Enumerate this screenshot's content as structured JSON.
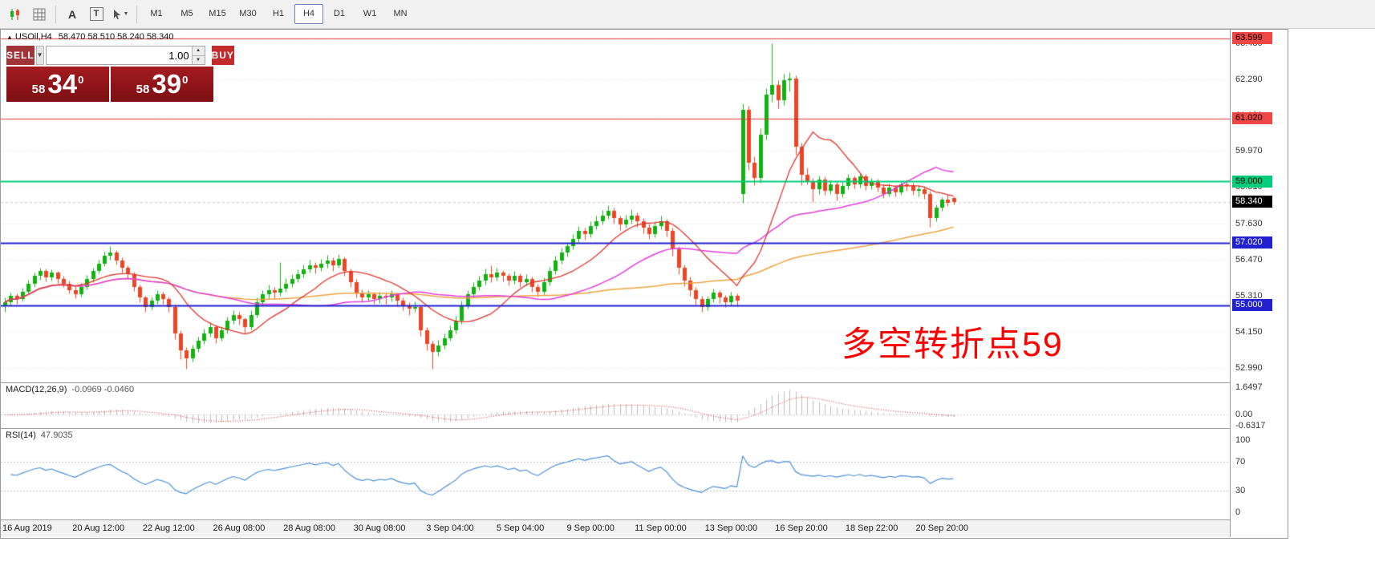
{
  "toolbar": {
    "letter_a": "A",
    "letter_t": "T",
    "timeframes": [
      "M1",
      "M5",
      "M15",
      "M30",
      "H1",
      "H4",
      "D1",
      "W1",
      "MN"
    ],
    "active_timeframe": "H4"
  },
  "chart_header": {
    "marker": "▲",
    "symbol_tf": "USOil,H4",
    "ohlc": "58.470 58.510 58.240 58.340"
  },
  "trade_widget": {
    "sell_label": "SELL",
    "buy_label": "BUY",
    "volume": "1.00",
    "sell_price": {
      "prefix": "58",
      "big": "34",
      "sup": "0"
    },
    "buy_price": {
      "prefix": "58",
      "big": "39",
      "sup": "0"
    }
  },
  "annotation": {
    "text": "多空转折点59",
    "color": "#ff0000"
  },
  "macd_panel": {
    "label": "MACD(12,26,9)",
    "values": "-0.0969 -0.0460"
  },
  "rsi_panel": {
    "label": "RSI(14)",
    "values": "47.9035"
  },
  "current_price_tag": {
    "label": "58.340",
    "bg": "#000000",
    "fg": "#ffffff"
  },
  "chart_data": {
    "type": "candlestick",
    "symbol": "USOil",
    "timeframe": "H4",
    "ylim": [
      52.52,
      63.88
    ],
    "price_ticks": [
      "63.430",
      "62.290",
      "61.130",
      "59.970",
      "58.810",
      "57.630",
      "56.470",
      "55.310",
      "54.150",
      "52.990"
    ],
    "hlines": [
      {
        "price": 63.599,
        "label": "63.599",
        "color": "#e03232",
        "width": 1,
        "tag_bg": "#ef4646",
        "tag_fg": "#000000"
      },
      {
        "price": 61.02,
        "label": "61.020",
        "color": "#e03232",
        "width": 1,
        "tag_bg": "#ef4646",
        "tag_fg": "#000000"
      },
      {
        "price": 59.0,
        "label": "59.000",
        "color": "#00ce7c",
        "width": 2,
        "tag_bg": "#00ce7c",
        "tag_fg": "#000000"
      },
      {
        "price": 57.02,
        "label": "57.020",
        "color": "#2121cf",
        "width": 2,
        "tag_bg": "#2121cf",
        "tag_fg": "#ffffff"
      },
      {
        "price": 55.0,
        "label": "55.000",
        "color": "#2121cf",
        "width": 2,
        "tag_bg": "#2121cf",
        "tag_fg": "#ffffff"
      }
    ],
    "bid_price": 58.34,
    "ma_periods": {
      "fast": 13,
      "mid": 34,
      "slow": 89
    },
    "macd_params": [
      12,
      26,
      9
    ],
    "macd_ylim": [
      -0.8,
      1.9
    ],
    "macd_scale": [
      {
        "text": "1.6497",
        "v": 1.6497
      },
      {
        "text": "0.00",
        "v": 0
      },
      {
        "text": "-0.6317",
        "v": -0.6317
      }
    ],
    "rsi_period": 14,
    "rsi_scale": [
      {
        "text": "100",
        "v": 100
      },
      {
        "text": "70",
        "v": 70
      },
      {
        "text": "30",
        "v": 30
      },
      {
        "text": "0",
        "v": 0
      }
    ],
    "rsi_levels": [
      70,
      30
    ],
    "colors": {
      "up": "#12b212",
      "down": "#ec4626",
      "ma_fast": "#e0352b",
      "ma_mid": "#e23ddb",
      "ma_slow": "#eca43e",
      "macd_hist": "#bdbdbd",
      "macd_signal": "#de2020",
      "rsi": "#4a90d9",
      "grid": "#e6e6e6",
      "level_dash": "#c0c0c0"
    },
    "time_labels": [
      {
        "text": "16 Aug 2019",
        "i": 0
      },
      {
        "text": "20 Aug 12:00",
        "i": 16
      },
      {
        "text": "22 Aug 12:00",
        "i": 28
      },
      {
        "text": "26 Aug 08:00",
        "i": 40
      },
      {
        "text": "28 Aug 08:00",
        "i": 52
      },
      {
        "text": "30 Aug 08:00",
        "i": 64
      },
      {
        "text": "3 Sep 04:00",
        "i": 76
      },
      {
        "text": "5 Sep 04:00",
        "i": 88
      },
      {
        "text": "9 Sep 00:00",
        "i": 100
      },
      {
        "text": "11 Sep 00:00",
        "i": 112
      },
      {
        "text": "13 Sep 00:00",
        "i": 124
      },
      {
        "text": "16 Sep 20:00",
        "i": 136
      },
      {
        "text": "18 Sep 22:00",
        "i": 148
      },
      {
        "text": "20 Sep 20:00",
        "i": 160
      }
    ],
    "candles": [
      [
        55.0,
        55.25,
        54.8,
        55.1
      ],
      [
        55.1,
        55.42,
        55.0,
        55.3
      ],
      [
        55.3,
        55.38,
        55.05,
        55.2
      ],
      [
        55.2,
        55.56,
        55.12,
        55.45
      ],
      [
        55.45,
        55.82,
        55.38,
        55.7
      ],
      [
        55.7,
        56.06,
        55.6,
        55.95
      ],
      [
        55.95,
        56.22,
        55.82,
        56.1
      ],
      [
        56.1,
        56.18,
        55.78,
        55.9
      ],
      [
        55.9,
        56.16,
        55.8,
        56.05
      ],
      [
        56.05,
        56.12,
        55.72,
        55.85
      ],
      [
        55.85,
        55.95,
        55.58,
        55.7
      ],
      [
        55.7,
        55.8,
        55.38,
        55.5
      ],
      [
        55.5,
        55.62,
        55.22,
        55.35
      ],
      [
        55.35,
        55.72,
        55.28,
        55.6
      ],
      [
        55.6,
        55.97,
        55.52,
        55.85
      ],
      [
        55.85,
        56.22,
        55.76,
        56.1
      ],
      [
        56.1,
        56.48,
        56.02,
        56.35
      ],
      [
        56.35,
        56.73,
        56.26,
        56.6
      ],
      [
        56.6,
        56.9,
        56.48,
        56.7
      ],
      [
        56.7,
        56.78,
        56.32,
        56.45
      ],
      [
        56.45,
        56.55,
        56.06,
        56.2
      ],
      [
        56.2,
        56.3,
        55.86,
        56.0
      ],
      [
        56.0,
        56.08,
        55.46,
        55.6
      ],
      [
        55.6,
        55.68,
        55.1,
        55.25
      ],
      [
        55.25,
        55.32,
        54.78,
        54.95
      ],
      [
        54.95,
        55.28,
        54.86,
        55.15
      ],
      [
        55.15,
        55.48,
        55.06,
        55.35
      ],
      [
        55.35,
        55.44,
        55.04,
        55.2
      ],
      [
        55.2,
        55.29,
        54.78,
        54.95
      ],
      [
        54.95,
        55.02,
        53.92,
        54.1
      ],
      [
        54.1,
        54.2,
        53.28,
        53.55
      ],
      [
        53.55,
        53.66,
        52.97,
        53.3
      ],
      [
        53.3,
        53.74,
        53.18,
        53.6
      ],
      [
        53.6,
        53.99,
        53.5,
        53.85
      ],
      [
        53.85,
        54.24,
        53.76,
        54.1
      ],
      [
        54.1,
        54.45,
        54.0,
        54.3
      ],
      [
        54.3,
        54.38,
        53.78,
        53.95
      ],
      [
        53.95,
        54.34,
        53.86,
        54.2
      ],
      [
        54.2,
        54.64,
        54.1,
        54.5
      ],
      [
        54.5,
        54.85,
        54.4,
        54.7
      ],
      [
        54.7,
        54.78,
        54.38,
        54.55
      ],
      [
        54.55,
        54.62,
        54.12,
        54.3
      ],
      [
        54.3,
        54.84,
        54.22,
        54.7
      ],
      [
        54.7,
        55.25,
        54.6,
        55.1
      ],
      [
        55.1,
        55.5,
        55.0,
        55.35
      ],
      [
        55.35,
        55.66,
        55.24,
        55.5
      ],
      [
        55.5,
        55.58,
        55.2,
        55.4
      ],
      [
        55.4,
        56.4,
        55.3,
        55.55
      ],
      [
        55.55,
        55.88,
        55.45,
        55.7
      ],
      [
        55.7,
        56.0,
        55.6,
        55.85
      ],
      [
        55.85,
        56.15,
        55.74,
        56.0
      ],
      [
        56.0,
        56.32,
        55.9,
        56.15
      ],
      [
        56.15,
        56.46,
        56.05,
        56.3
      ],
      [
        56.3,
        56.4,
        56.02,
        56.2
      ],
      [
        56.2,
        56.5,
        56.1,
        56.35
      ],
      [
        56.35,
        56.62,
        56.22,
        56.45
      ],
      [
        56.45,
        56.55,
        56.12,
        56.3
      ],
      [
        56.3,
        56.66,
        56.2,
        56.5
      ],
      [
        56.5,
        56.58,
        55.96,
        56.1
      ],
      [
        56.1,
        56.18,
        55.6,
        55.75
      ],
      [
        55.75,
        55.85,
        55.26,
        55.4
      ],
      [
        55.4,
        55.52,
        55.1,
        55.25
      ],
      [
        55.25,
        55.5,
        55.14,
        55.35
      ],
      [
        55.35,
        55.45,
        55.05,
        55.2
      ],
      [
        55.2,
        55.44,
        55.08,
        55.3
      ],
      [
        55.3,
        55.4,
        55.06,
        55.25
      ],
      [
        55.25,
        55.49,
        55.12,
        55.35
      ],
      [
        55.35,
        55.42,
        54.98,
        55.15
      ],
      [
        55.15,
        55.25,
        54.84,
        55.0
      ],
      [
        55.0,
        55.1,
        54.7,
        54.9
      ],
      [
        54.9,
        55.12,
        54.78,
        54.95
      ],
      [
        54.95,
        55.0,
        54.02,
        54.2
      ],
      [
        54.2,
        54.3,
        53.55,
        53.75
      ],
      [
        53.75,
        53.85,
        52.96,
        53.5
      ],
      [
        53.5,
        53.88,
        53.38,
        53.7
      ],
      [
        53.7,
        54.1,
        53.6,
        53.95
      ],
      [
        53.95,
        54.36,
        53.85,
        54.2
      ],
      [
        54.2,
        54.66,
        54.1,
        54.5
      ],
      [
        54.5,
        55.16,
        54.4,
        55.0
      ],
      [
        55.0,
        55.5,
        54.9,
        55.35
      ],
      [
        55.35,
        55.76,
        55.25,
        55.6
      ],
      [
        55.6,
        55.96,
        55.48,
        55.8
      ],
      [
        55.8,
        56.18,
        55.68,
        56.0
      ],
      [
        56.0,
        56.3,
        55.76,
        55.9
      ],
      [
        55.9,
        56.22,
        55.8,
        56.05
      ],
      [
        56.05,
        56.14,
        55.78,
        55.95
      ],
      [
        55.95,
        56.04,
        55.64,
        55.8
      ],
      [
        55.8,
        56.12,
        55.7,
        55.95
      ],
      [
        55.95,
        56.04,
        55.58,
        55.75
      ],
      [
        55.75,
        56.01,
        55.65,
        55.85
      ],
      [
        55.85,
        55.93,
        55.44,
        55.6
      ],
      [
        55.6,
        55.7,
        55.28,
        55.45
      ],
      [
        55.45,
        55.9,
        55.35,
        55.75
      ],
      [
        55.75,
        56.24,
        55.65,
        56.1
      ],
      [
        56.1,
        56.6,
        56.0,
        56.45
      ],
      [
        56.45,
        56.86,
        56.35,
        56.7
      ],
      [
        56.7,
        57.04,
        56.58,
        56.9
      ],
      [
        56.9,
        57.3,
        56.8,
        57.15
      ],
      [
        57.15,
        57.56,
        57.04,
        57.4
      ],
      [
        57.4,
        57.5,
        57.12,
        57.3
      ],
      [
        57.3,
        57.71,
        57.2,
        57.55
      ],
      [
        57.55,
        57.88,
        57.45,
        57.7
      ],
      [
        57.7,
        58.08,
        57.6,
        57.9
      ],
      [
        57.9,
        58.22,
        57.78,
        58.05
      ],
      [
        58.05,
        58.14,
        57.64,
        57.8
      ],
      [
        57.8,
        57.9,
        57.42,
        57.6
      ],
      [
        57.6,
        57.92,
        57.5,
        57.75
      ],
      [
        57.75,
        58.1,
        57.64,
        57.9
      ],
      [
        57.9,
        58.0,
        57.52,
        57.7
      ],
      [
        57.7,
        57.8,
        57.32,
        57.5
      ],
      [
        57.5,
        57.62,
        57.14,
        57.3
      ],
      [
        57.3,
        57.72,
        57.2,
        57.55
      ],
      [
        57.55,
        57.9,
        57.44,
        57.7
      ],
      [
        57.7,
        57.78,
        57.22,
        57.4
      ],
      [
        57.4,
        57.5,
        56.6,
        56.8
      ],
      [
        56.8,
        56.9,
        56.0,
        56.2
      ],
      [
        56.2,
        56.32,
        55.62,
        55.8
      ],
      [
        55.8,
        55.92,
        55.32,
        55.5
      ],
      [
        55.5,
        55.6,
        55.02,
        55.2
      ],
      [
        55.2,
        55.3,
        54.78,
        54.95
      ],
      [
        54.95,
        55.32,
        54.85,
        55.2
      ],
      [
        55.2,
        55.54,
        55.1,
        55.4
      ],
      [
        55.4,
        55.48,
        55.08,
        55.25
      ],
      [
        55.25,
        55.34,
        54.94,
        55.1
      ],
      [
        55.1,
        55.44,
        55.0,
        55.3
      ],
      [
        55.3,
        55.38,
        54.98,
        55.15
      ],
      [
        58.6,
        61.5,
        58.3,
        61.3
      ],
      [
        61.3,
        61.44,
        59.35,
        59.6
      ],
      [
        59.6,
        59.8,
        58.86,
        59.1
      ],
      [
        59.1,
        60.7,
        58.95,
        60.5
      ],
      [
        60.5,
        62.0,
        60.35,
        61.8
      ],
      [
        61.8,
        63.43,
        61.55,
        62.1
      ],
      [
        62.1,
        62.25,
        61.35,
        61.6
      ],
      [
        61.6,
        62.45,
        61.45,
        62.25
      ],
      [
        62.25,
        62.52,
        61.9,
        62.3
      ],
      [
        62.3,
        62.4,
        59.85,
        60.1
      ],
      [
        60.1,
        60.25,
        58.88,
        59.2
      ],
      [
        59.2,
        59.45,
        58.9,
        59.0
      ],
      [
        59.0,
        59.1,
        58.32,
        58.75
      ],
      [
        58.75,
        59.18,
        58.6,
        59.05
      ],
      [
        59.05,
        59.15,
        58.56,
        58.7
      ],
      [
        58.7,
        59.02,
        58.58,
        58.9
      ],
      [
        58.9,
        58.98,
        58.38,
        58.6
      ],
      [
        58.6,
        58.97,
        58.48,
        58.85
      ],
      [
        58.85,
        59.22,
        58.75,
        59.1
      ],
      [
        59.1,
        59.18,
        58.76,
        58.9
      ],
      [
        58.9,
        59.26,
        58.8,
        59.15
      ],
      [
        59.15,
        59.24,
        58.72,
        58.85
      ],
      [
        58.85,
        59.1,
        58.74,
        59.0
      ],
      [
        59.0,
        59.08,
        58.66,
        58.8
      ],
      [
        58.8,
        58.9,
        58.45,
        58.6
      ],
      [
        58.6,
        58.92,
        58.5,
        58.8
      ],
      [
        58.8,
        58.88,
        58.52,
        58.65
      ],
      [
        58.65,
        58.98,
        58.55,
        58.9
      ],
      [
        58.9,
        59.05,
        58.7,
        58.85
      ],
      [
        58.85,
        58.95,
        58.55,
        58.7
      ],
      [
        58.7,
        58.86,
        58.5,
        58.75
      ],
      [
        58.75,
        58.85,
        58.42,
        58.6
      ],
      [
        58.6,
        58.7,
        57.52,
        57.8
      ],
      [
        57.8,
        58.25,
        57.7,
        58.15
      ],
      [
        58.15,
        58.48,
        58.05,
        58.4
      ],
      [
        58.4,
        58.55,
        58.2,
        58.3
      ],
      [
        58.47,
        58.51,
        58.24,
        58.34
      ]
    ]
  }
}
